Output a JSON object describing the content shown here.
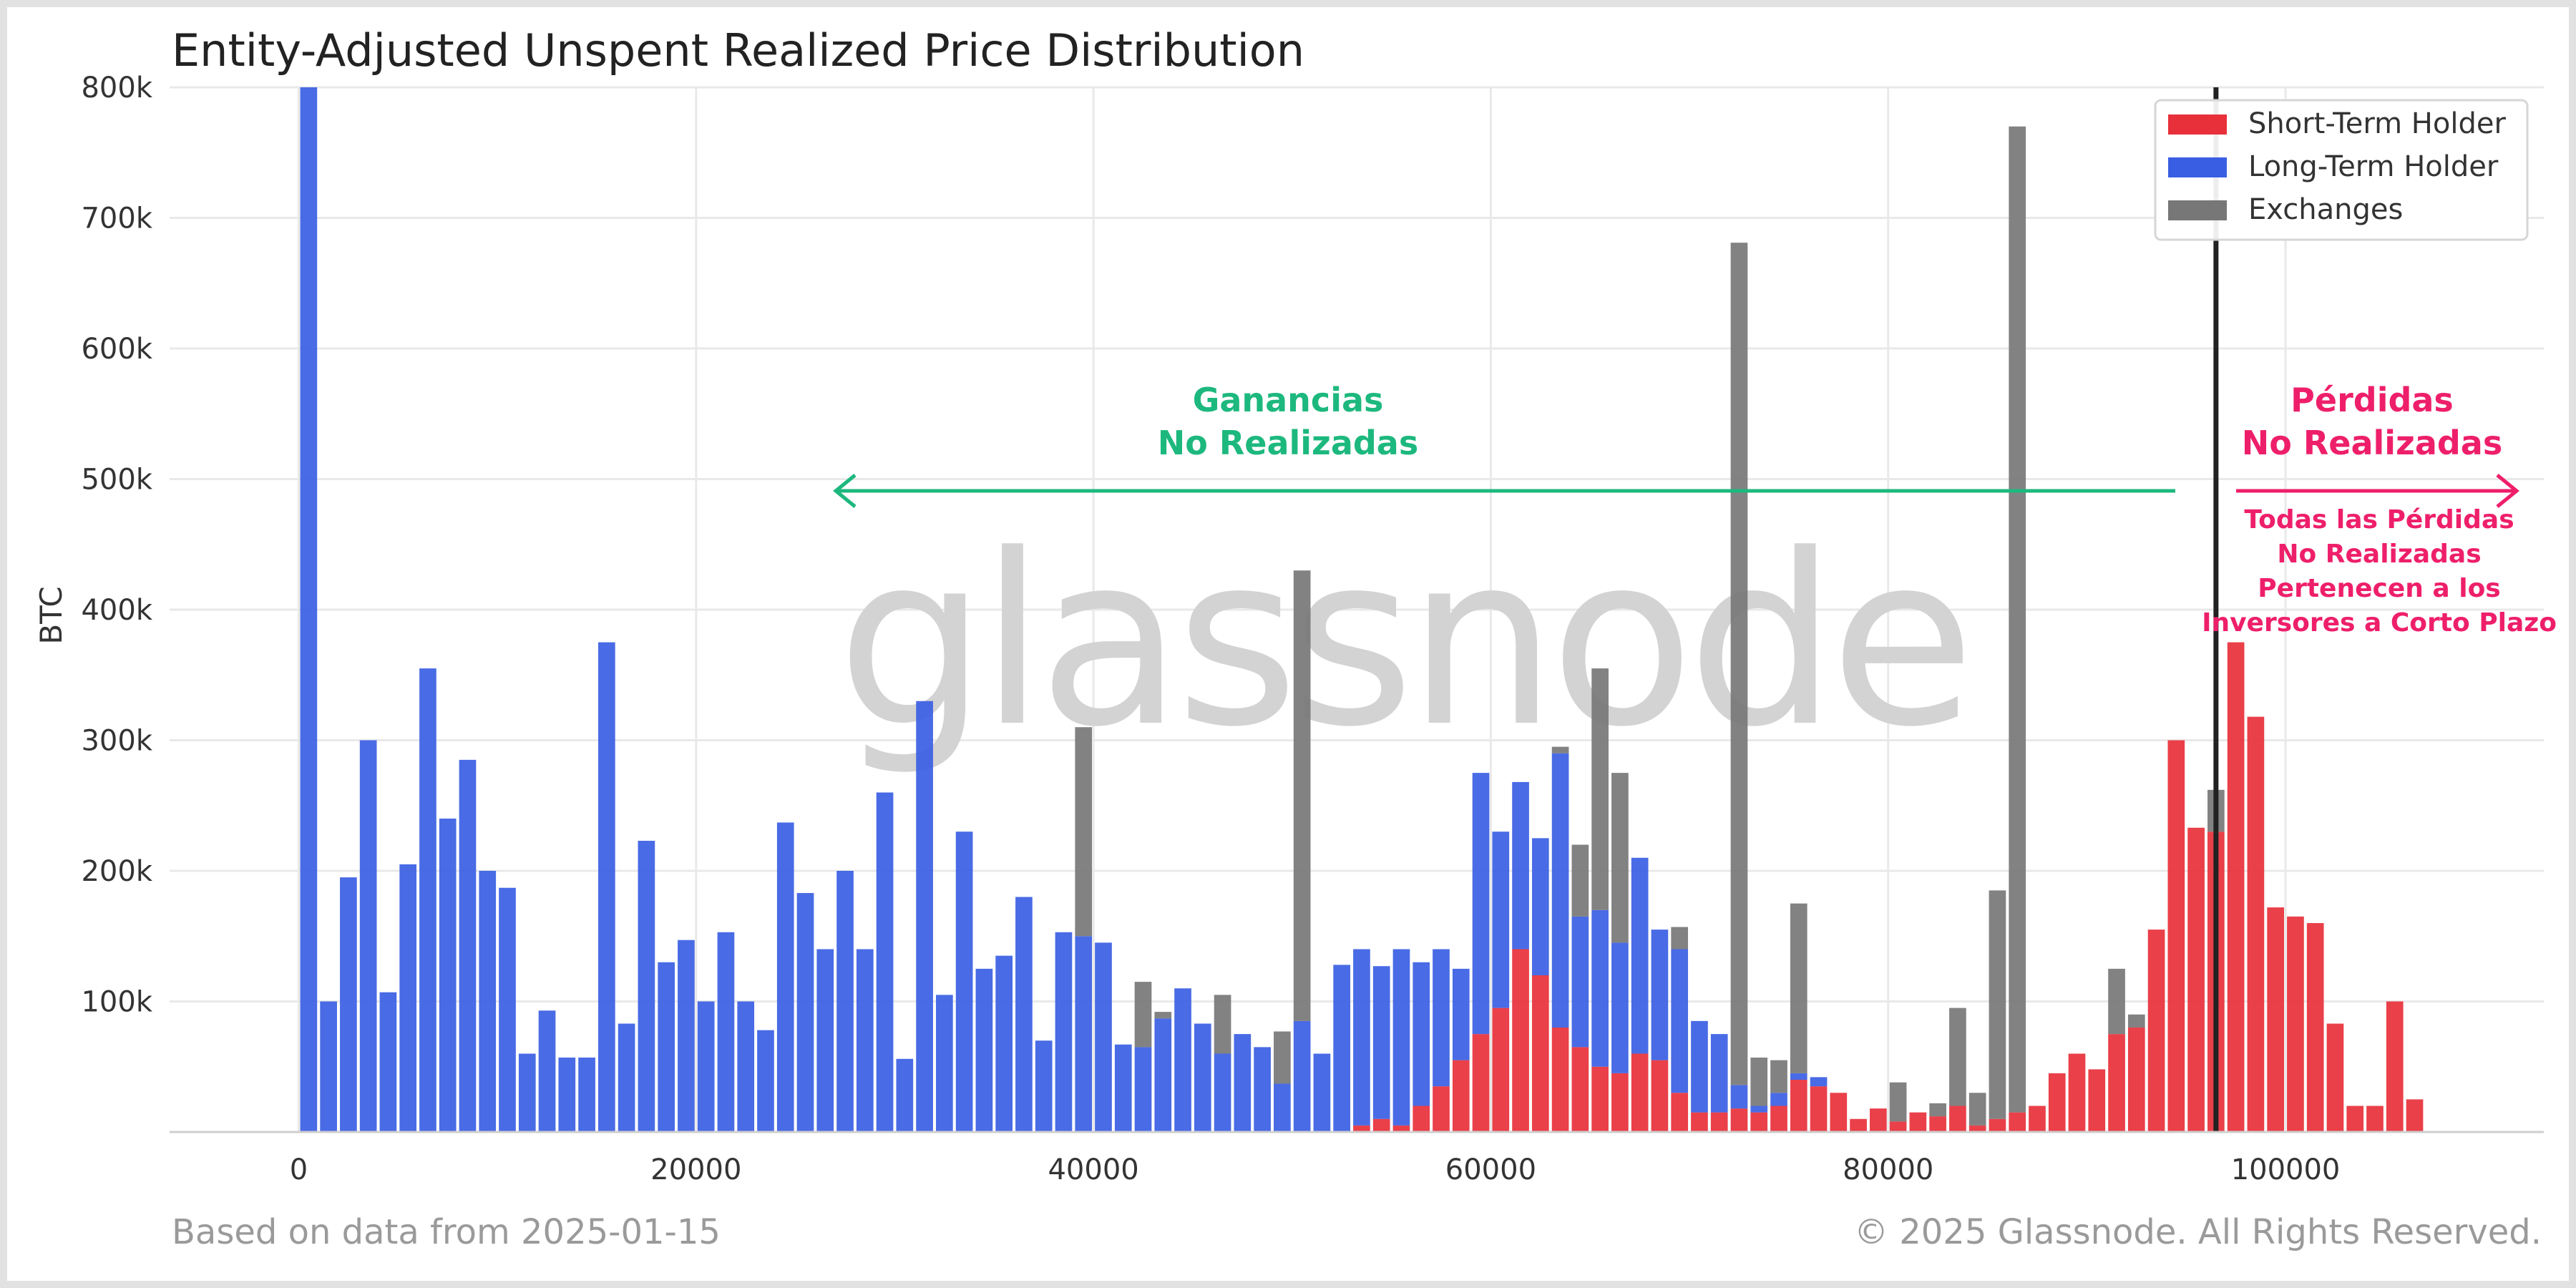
{
  "chart_data": {
    "type": "bar",
    "title": "Entity-Adjusted Unspent Realized Price Distribution",
    "xlabel": "",
    "ylabel": "BTC",
    "xlim": [
      -6500,
      113000
    ],
    "ylim": [
      0,
      800000
    ],
    "x_ticks": [
      0,
      20000,
      40000,
      60000,
      80000,
      100000
    ],
    "y_ticks": [
      100000,
      200000,
      300000,
      400000,
      500000,
      600000,
      700000,
      800000
    ],
    "y_tick_labels": [
      "100k",
      "200k",
      "300k",
      "400k",
      "500k",
      "600k",
      "700k",
      "800k"
    ],
    "grid": true,
    "legend_position": "top-right",
    "stacked": true,
    "bin_width": 1040,
    "current_price": 96500,
    "series": [
      {
        "name": "Short-Term Holder",
        "color": "#e8303a",
        "points": [
          [
            53500,
            5000
          ],
          [
            54500,
            10000
          ],
          [
            55500,
            5000
          ],
          [
            56500,
            20000
          ],
          [
            57500,
            35000
          ],
          [
            58500,
            55000
          ],
          [
            59500,
            75000
          ],
          [
            60500,
            95000
          ],
          [
            61500,
            140000
          ],
          [
            62500,
            120000
          ],
          [
            63500,
            80000
          ],
          [
            64500,
            65000
          ],
          [
            65500,
            50000
          ],
          [
            66500,
            45000
          ],
          [
            67500,
            60000
          ],
          [
            68500,
            55000
          ],
          [
            69500,
            30000
          ],
          [
            70500,
            15000
          ],
          [
            71500,
            15000
          ],
          [
            72500,
            18000
          ],
          [
            73500,
            15000
          ],
          [
            74500,
            20000
          ],
          [
            75500,
            40000
          ],
          [
            76500,
            35000
          ],
          [
            77500,
            30000
          ],
          [
            78500,
            10000
          ],
          [
            79500,
            18000
          ],
          [
            80500,
            8000
          ],
          [
            81500,
            15000
          ],
          [
            82500,
            12000
          ],
          [
            83500,
            20000
          ],
          [
            84500,
            5000
          ],
          [
            85500,
            10000
          ],
          [
            86500,
            15000
          ],
          [
            87500,
            20000
          ],
          [
            88500,
            45000
          ],
          [
            89500,
            60000
          ],
          [
            90500,
            48000
          ],
          [
            91500,
            75000
          ],
          [
            92500,
            80000
          ],
          [
            93500,
            155000
          ],
          [
            94500,
            300000
          ],
          [
            95500,
            233000
          ],
          [
            96500,
            230000
          ],
          [
            97500,
            375000
          ],
          [
            98500,
            318000
          ],
          [
            99500,
            172000
          ],
          [
            100500,
            165000
          ],
          [
            101500,
            160000
          ],
          [
            102500,
            83000
          ],
          [
            103500,
            20000
          ],
          [
            104500,
            20000
          ],
          [
            105500,
            100000
          ],
          [
            106500,
            25000
          ]
        ]
      },
      {
        "name": "Long-Term Holder",
        "color": "#3a5ee3",
        "points": [
          [
            500,
            800000
          ],
          [
            1500,
            100000
          ],
          [
            2500,
            195000
          ],
          [
            3500,
            300000
          ],
          [
            4500,
            107000
          ],
          [
            5500,
            205000
          ],
          [
            6500,
            355000
          ],
          [
            7500,
            240000
          ],
          [
            8500,
            285000
          ],
          [
            9500,
            200000
          ],
          [
            10500,
            187000
          ],
          [
            11500,
            60000
          ],
          [
            12500,
            93000
          ],
          [
            13500,
            57000
          ],
          [
            14500,
            57000
          ],
          [
            15500,
            375000
          ],
          [
            16500,
            83000
          ],
          [
            17500,
            223000
          ],
          [
            18500,
            130000
          ],
          [
            19500,
            147000
          ],
          [
            20500,
            100000
          ],
          [
            21500,
            153000
          ],
          [
            22500,
            100000
          ],
          [
            23500,
            78000
          ],
          [
            24500,
            237000
          ],
          [
            25500,
            183000
          ],
          [
            26500,
            140000
          ],
          [
            27500,
            200000
          ],
          [
            28500,
            140000
          ],
          [
            29500,
            260000
          ],
          [
            30500,
            56000
          ],
          [
            31500,
            330000
          ],
          [
            32500,
            105000
          ],
          [
            33500,
            230000
          ],
          [
            34500,
            125000
          ],
          [
            35500,
            135000
          ],
          [
            36500,
            180000
          ],
          [
            37500,
            70000
          ],
          [
            38500,
            153000
          ],
          [
            39500,
            150000
          ],
          [
            40500,
            145000
          ],
          [
            41500,
            67000
          ],
          [
            42500,
            65000
          ],
          [
            43500,
            87000
          ],
          [
            44500,
            110000
          ],
          [
            45500,
            83000
          ],
          [
            46500,
            60000
          ],
          [
            47500,
            75000
          ],
          [
            48500,
            65000
          ],
          [
            49500,
            37000
          ],
          [
            50500,
            85000
          ],
          [
            51500,
            60000
          ],
          [
            52500,
            128000
          ],
          [
            53500,
            135000
          ],
          [
            54500,
            117000
          ],
          [
            55500,
            135000
          ],
          [
            56500,
            110000
          ],
          [
            57500,
            105000
          ],
          [
            58500,
            70000
          ],
          [
            59500,
            200000
          ],
          [
            60500,
            135000
          ],
          [
            61500,
            128000
          ],
          [
            62500,
            105000
          ],
          [
            63500,
            210000
          ],
          [
            64500,
            100000
          ],
          [
            65500,
            120000
          ],
          [
            66500,
            100000
          ],
          [
            67500,
            150000
          ],
          [
            68500,
            100000
          ],
          [
            69500,
            110000
          ],
          [
            70500,
            70000
          ],
          [
            71500,
            60000
          ],
          [
            72500,
            18000
          ],
          [
            73500,
            5000
          ],
          [
            74500,
            10000
          ],
          [
            75500,
            5000
          ],
          [
            76500,
            7000
          ]
        ]
      },
      {
        "name": "Exchanges",
        "color": "#777777",
        "points": [
          [
            39500,
            160000
          ],
          [
            42500,
            50000
          ],
          [
            43500,
            5000
          ],
          [
            46500,
            45000
          ],
          [
            49500,
            40000
          ],
          [
            50500,
            345000
          ],
          [
            63500,
            5000
          ],
          [
            64500,
            55000
          ],
          [
            65500,
            185000
          ],
          [
            66500,
            130000
          ],
          [
            69500,
            17000
          ],
          [
            72500,
            645000
          ],
          [
            73500,
            37000
          ],
          [
            74500,
            25000
          ],
          [
            75500,
            130000
          ],
          [
            80500,
            30000
          ],
          [
            82500,
            10000
          ],
          [
            83500,
            75000
          ],
          [
            84500,
            25000
          ],
          [
            85500,
            175000
          ],
          [
            86500,
            755000
          ],
          [
            91500,
            50000
          ],
          [
            92500,
            10000
          ],
          [
            96500,
            32000
          ]
        ]
      }
    ]
  },
  "annotations": {
    "gains_line1": "Ganancias",
    "gains_line2": "No Realizadas",
    "losses_line1": "Pérdidas",
    "losses_line2": "No Realizadas",
    "note_line1": "Todas las Pérdidas",
    "note_line2": "No Realizadas",
    "note_line3": "Pertenecen a los",
    "note_line4": "Inversores a Corto Plazo",
    "gains_color": "#1db87e",
    "losses_color": "#ee1f6a"
  },
  "watermark": "glassnode",
  "footer": {
    "left": "Based on data from 2025-01-15",
    "right": "© 2025 Glassnode. All Rights Reserved."
  }
}
